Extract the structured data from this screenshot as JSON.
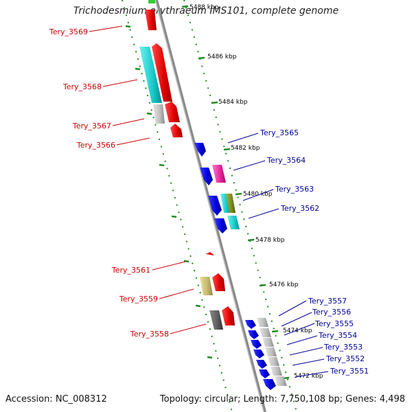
{
  "title": "Trichodesmium erythraeum IMS101, complete genome",
  "footer": {
    "accession": "Accession: NC_008312",
    "topology": "Topology: circular; Length: 7,750,108 bp; Genes: 4,498"
  },
  "kbp_ticks": [
    "5488 kbp",
    "5486 kbp",
    "5484 kbp",
    "5482 kbp",
    "5480 kbp",
    "5478 kbp",
    "5476 kbp",
    "5474 kbp",
    "5472 kbp"
  ],
  "left_genes": [
    "Tery_3569",
    "Tery_3568",
    "Tery_3567",
    "Tery_3566",
    "Tery_3561",
    "Tery_3559",
    "Tery_3558"
  ],
  "right_genes": [
    "Tery_3565",
    "Tery_3564",
    "Tery_3563",
    "Tery_3562",
    "Tery_3557",
    "Tery_3556",
    "Tery_3555",
    "Tery_3554",
    "Tery_3553",
    "Tery_3552",
    "Tery_3551"
  ],
  "colors": {
    "forward_label": "#cc0000",
    "reverse_label": "#000099",
    "forward_gene": "#ff0000",
    "reverse_gene": "#0000ee",
    "backbone": "#8a8a8a",
    "tick": "#228b22"
  }
}
